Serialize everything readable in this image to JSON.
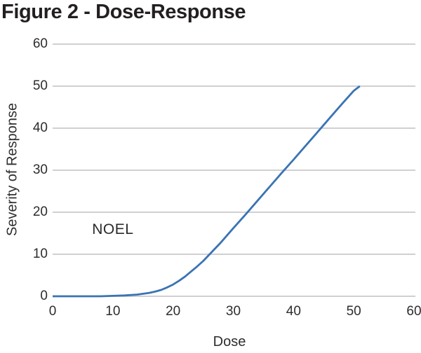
{
  "title": "Figure 2 - Dose-Response",
  "colors": {
    "line": "#3a73b4",
    "gridline": "#c9cacb",
    "title_text": "#231f20",
    "tick_text": "#2e2d2c",
    "background": "#ffffff"
  },
  "chart_data": {
    "type": "line",
    "title": "Figure 2 - Dose-Response",
    "xlabel": "Dose",
    "ylabel": "Severity of Response",
    "xlim": [
      0,
      60
    ],
    "ylim": [
      0,
      60
    ],
    "x_ticks": [
      0,
      10,
      20,
      30,
      40,
      50,
      60
    ],
    "y_ticks": [
      0,
      10,
      20,
      30,
      40,
      50,
      60
    ],
    "grid": "horizontal",
    "legend": "none",
    "annotation": {
      "text": "NOEL",
      "x": 10,
      "y": 15.8
    },
    "series": [
      {
        "name": "Severity of Response",
        "color": "#3a73b4",
        "points": [
          [
            0,
            0
          ],
          [
            2,
            0
          ],
          [
            4,
            0
          ],
          [
            6,
            0
          ],
          [
            8,
            0
          ],
          [
            10,
            0.1
          ],
          [
            12,
            0.2
          ],
          [
            14,
            0.4
          ],
          [
            16,
            0.8
          ],
          [
            17,
            1.1
          ],
          [
            18,
            1.5
          ],
          [
            19,
            2.1
          ],
          [
            20,
            2.8
          ],
          [
            21,
            3.7
          ],
          [
            22,
            4.7
          ],
          [
            23,
            5.9
          ],
          [
            24,
            7.1
          ],
          [
            25,
            8.4
          ],
          [
            26,
            9.9
          ],
          [
            28,
            12.9
          ],
          [
            30,
            16.2
          ],
          [
            32,
            19.4
          ],
          [
            34,
            22.7
          ],
          [
            36,
            26.0
          ],
          [
            38,
            29.3
          ],
          [
            40,
            32.5
          ],
          [
            42,
            35.8
          ],
          [
            44,
            39.1
          ],
          [
            46,
            42.4
          ],
          [
            48,
            45.7
          ],
          [
            50,
            48.9
          ],
          [
            51,
            50
          ]
        ]
      }
    ]
  }
}
